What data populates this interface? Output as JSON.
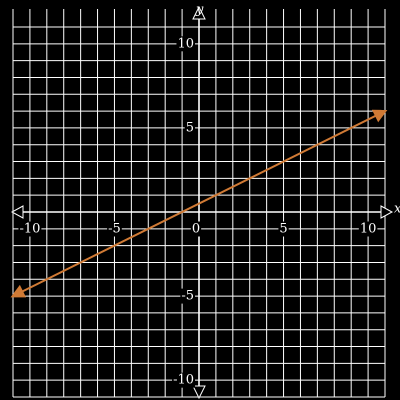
{
  "chart_data": {
    "type": "line",
    "x_label": "x",
    "y_label": "y",
    "xlim": [
      -11,
      11
    ],
    "ylim": [
      -11,
      11
    ],
    "xticks": [
      -10,
      -5,
      0,
      5,
      10
    ],
    "yticks": [
      -10,
      -5,
      5,
      10
    ],
    "grid_lines": [
      -11,
      -10,
      -9,
      -8,
      -7,
      -6,
      -5,
      -4,
      -3,
      -2,
      -1,
      0,
      1,
      2,
      3,
      4,
      5,
      6,
      7,
      8,
      9,
      10,
      11
    ],
    "x": [
      -11,
      11
    ],
    "series": [
      {
        "color": "#d07a35",
        "values": [
          -5,
          6
        ]
      }
    ]
  }
}
